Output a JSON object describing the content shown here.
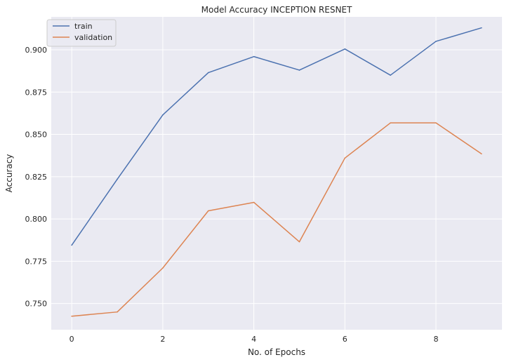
{
  "chart_data": {
    "type": "line",
    "title": "Model Accuracy INCEPTION RESNET",
    "xlabel": "No. of Epochs",
    "ylabel": "Accuracy",
    "x": [
      0,
      1,
      2,
      3,
      4,
      5,
      6,
      7,
      8,
      9
    ],
    "xticks": [
      0,
      2,
      4,
      6,
      8
    ],
    "yticks": [
      0.75,
      0.775,
      0.8,
      0.825,
      0.85,
      0.875,
      0.9
    ],
    "xlim": [
      -0.45,
      9.45
    ],
    "ylim": [
      0.7345,
      0.9195
    ],
    "grid": true,
    "legend_position": "top-left",
    "background": "#eaeaf2",
    "series": [
      {
        "name": "train",
        "color": "#4c72b0",
        "values": [
          0.7845,
          0.8235,
          0.8615,
          0.8865,
          0.896,
          0.888,
          0.9005,
          0.885,
          0.905,
          0.913
        ]
      },
      {
        "name": "validation",
        "color": "#dd8452",
        "values": [
          0.7425,
          0.745,
          0.771,
          0.8048,
          0.8098,
          0.7865,
          0.836,
          0.8568,
          0.8568,
          0.8385
        ]
      }
    ]
  }
}
